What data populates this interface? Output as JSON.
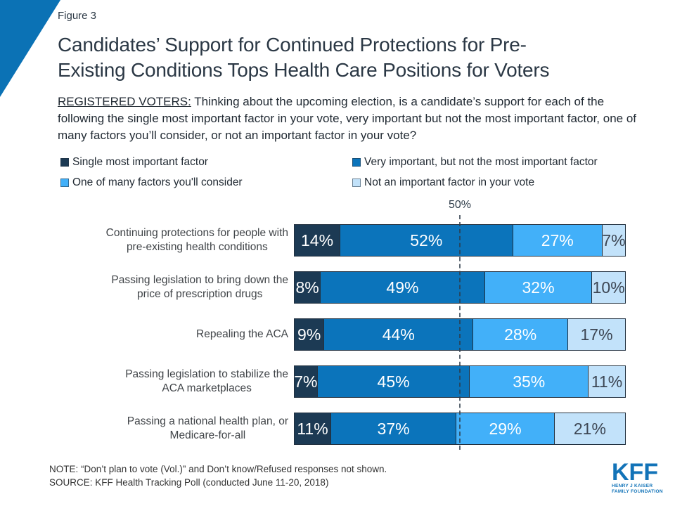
{
  "figure_label": "Figure 3",
  "title_lines": [
    "Candidates’ Support for Continued Protections for Pre-",
    "Existing Conditions Tops Health Care Positions for Voters"
  ],
  "subtitle": {
    "prefix": "REGISTERED VOTERS:",
    "rest": " Thinking about the upcoming election, is a candidate’s support for each of the following the single most important factor in your vote, very important but not the most important factor, one of many factors you’ll consider, or not an important factor in your vote?"
  },
  "chart_data": {
    "type": "bar",
    "orientation": "horizontal-stacked-100pct",
    "value_suffix": "%",
    "gridline": {
      "label": "50%",
      "value": 50
    },
    "axis_range": [
      0,
      100
    ],
    "legend_position": "top",
    "categories": [
      {
        "label": "Continuing protections for people with pre-existing health conditions",
        "lines": [
          "Continuing protections for people with",
          "pre-existing health conditions"
        ]
      },
      {
        "label": "Passing legislation to bring down the price of prescription drugs",
        "lines": [
          "Passing legislation to bring down the",
          "price of prescription drugs"
        ]
      },
      {
        "label": "Repealing the ACA",
        "lines": [
          "Repealing the ACA"
        ]
      },
      {
        "label": "Passing legislation to stabilize the ACA marketplaces",
        "lines": [
          "Passing legislation to stabilize the",
          "ACA marketplaces"
        ]
      },
      {
        "label": "Passing a national health plan, or Medicare-for-all",
        "lines": [
          "Passing a national health plan, or",
          "Medicare-for-all"
        ]
      }
    ],
    "series": [
      {
        "name": "Single most important factor",
        "color": "#1c3a54",
        "label_color": "#ffffff",
        "values": [
          14,
          8,
          9,
          7,
          11
        ]
      },
      {
        "name": "Very important, but not the most important factor",
        "color": "#0b74bb",
        "label_color": "#ffffff",
        "values": [
          52,
          49,
          44,
          45,
          37
        ]
      },
      {
        "name": "One of many factors you'll consider",
        "color": "#42b0f9",
        "label_color": "#ffffff",
        "values": [
          27,
          32,
          28,
          35,
          29
        ]
      },
      {
        "name": "Not an important factor in your vote",
        "color": "#c2e2fa",
        "label_color": "#3d4653",
        "values": [
          7,
          10,
          17,
          11,
          21
        ]
      }
    ]
  },
  "footer": {
    "note": "NOTE: “Don’t plan to vote (Vol.)” and Don’t know/Refused responses not shown.",
    "source": "SOURCE: KFF Health Tracking Poll (conducted June 11-20, 2018)"
  },
  "logo": {
    "kff": "KFF",
    "line1": "HENRY J KAISER",
    "line2": "FAMILY FOUNDATION"
  },
  "colors": {
    "accent_blue": "#0b72b5",
    "title_text": "#2b3845",
    "segment_border": "#223140"
  }
}
